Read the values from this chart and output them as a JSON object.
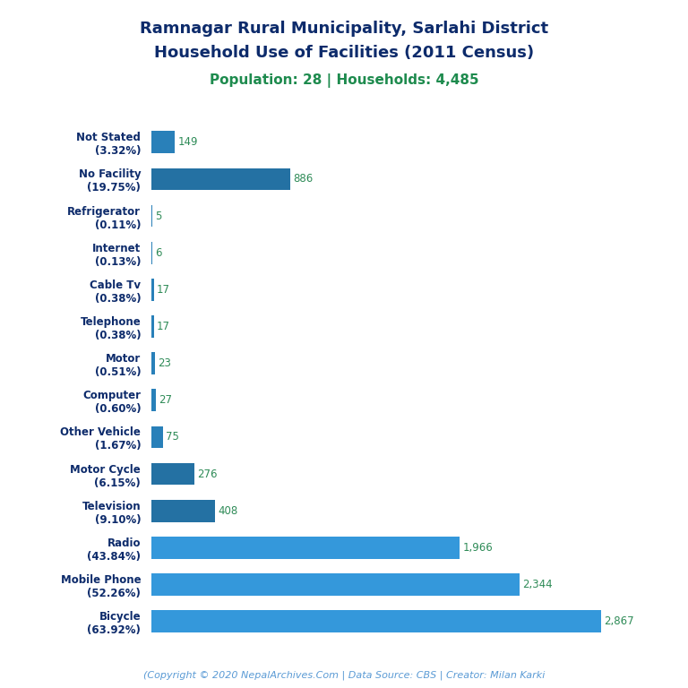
{
  "title_line1": "Ramnagar Rural Municipality, Sarlahi District",
  "title_line2": "Household Use of Facilities (2011 Census)",
  "subtitle": "Population: 28 | Households: 4,485",
  "footer": "(Copyright © 2020 NepalArchives.Com | Data Source: CBS | Creator: Milan Karki",
  "categories": [
    "Not Stated\n(3.32%)",
    "No Facility\n(19.75%)",
    "Refrigerator\n(0.11%)",
    "Internet\n(0.13%)",
    "Cable Tv\n(0.38%)",
    "Telephone\n(0.38%)",
    "Motor\n(0.51%)",
    "Computer\n(0.60%)",
    "Other Vehicle\n(1.67%)",
    "Motor Cycle\n(6.15%)",
    "Television\n(9.10%)",
    "Radio\n(43.84%)",
    "Mobile Phone\n(52.26%)",
    "Bicycle\n(63.92%)"
  ],
  "values": [
    149,
    886,
    5,
    6,
    17,
    17,
    23,
    27,
    75,
    276,
    408,
    1966,
    2344,
    2867
  ],
  "value_labels": [
    "149",
    "886",
    "5",
    "6",
    "17",
    "17",
    "23",
    "27",
    "75",
    "276",
    "408",
    "1,966",
    "2,344",
    "2,867"
  ],
  "title_color": "#0D2B6B",
  "subtitle_color": "#1E8B4E",
  "value_color": "#2E8B57",
  "footer_color": "#5B9BD5",
  "background_color": "#FFFFFF",
  "xlim": [
    0,
    3200
  ],
  "figsize": [
    7.68,
    7.68
  ],
  "dpi": 100
}
